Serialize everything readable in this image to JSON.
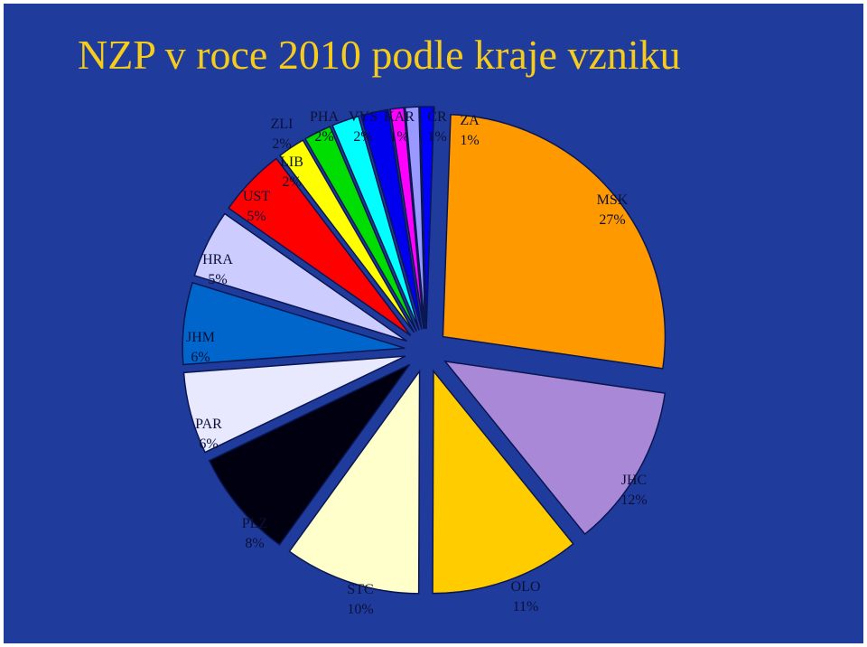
{
  "slide": {
    "title": "NZP v roce 2010 podle kraje vzniku"
  },
  "chart_data": {
    "type": "pie",
    "title": "NZP v roce 2010 podle kraje vzniku",
    "exploded": true,
    "slices": [
      {
        "name": "MSK",
        "label_value": "27%",
        "value": 27,
        "color": "#ff9900"
      },
      {
        "name": "JHC",
        "label_value": "12%",
        "value": 12,
        "color": "#a988d8"
      },
      {
        "name": "OLO",
        "label_value": "11%",
        "value": 11,
        "color": "#ffcc00"
      },
      {
        "name": "STC",
        "label_value": "10%",
        "value": 10,
        "color": "#ffffcc"
      },
      {
        "name": "PLZ",
        "label_value": "8%",
        "value": 8,
        "color": "#000010"
      },
      {
        "name": "PAR",
        "label_value": "6%",
        "value": 6,
        "color": "#e8e8ff"
      },
      {
        "name": "JHM",
        "label_value": "6%",
        "value": 6,
        "color": "#0066cc"
      },
      {
        "name": "HRA",
        "label_value": "5%",
        "value": 5,
        "color": "#ccccff"
      },
      {
        "name": "UST",
        "label_value": "5%",
        "value": 5,
        "color": "#ff0000"
      },
      {
        "name": "LIB",
        "label_value": "2%",
        "value": 2,
        "color": "#ffff00"
      },
      {
        "name": "ZLI",
        "label_value": "2%",
        "value": 2,
        "color": "#00dd00"
      },
      {
        "name": "PHA",
        "label_value": "2%",
        "value": 2,
        "color": "#00ffff"
      },
      {
        "name": "VYS",
        "label_value": "2%",
        "value": 2,
        "color": "#0000ee"
      },
      {
        "name": "KAR",
        "label_value": "1%",
        "value": 1,
        "color": "#ff00ff"
      },
      {
        "name": "ČR",
        "label_value": "1%",
        "value": 1,
        "color": "#9999ff"
      },
      {
        "name": "ZA",
        "label_value": "1%",
        "value": 1,
        "color": "#0000ff"
      }
    ]
  }
}
